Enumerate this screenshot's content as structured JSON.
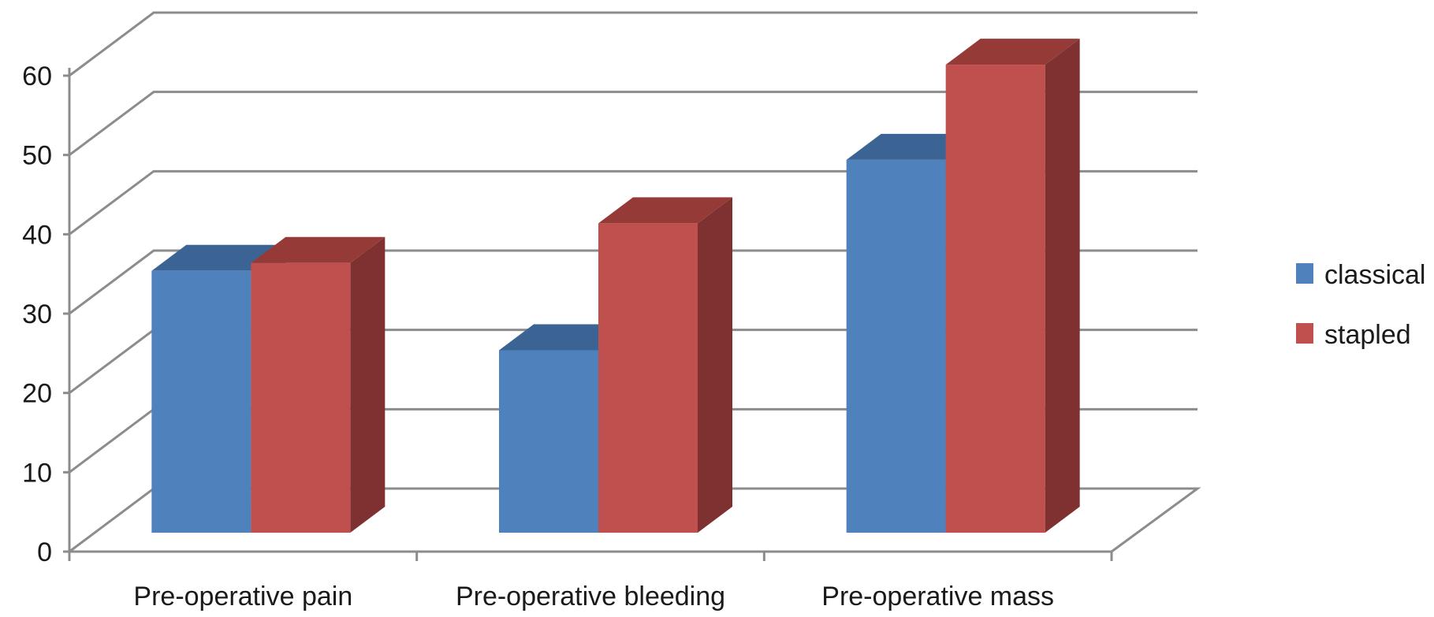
{
  "chart_data": {
    "type": "bar",
    "categories": [
      "Pre-operative pain",
      "Pre-operative bleeding",
      "Pre-operative mass"
    ],
    "series": [
      {
        "name": "classical",
        "values": [
          33,
          23,
          47
        ],
        "color": "#4F81BD",
        "top_color": "#3B6494",
        "side_color": "#2F5077"
      },
      {
        "name": "stapled",
        "values": [
          34,
          39,
          59
        ],
        "color": "#C0504D",
        "top_color": "#953A37",
        "side_color": "#7E3130"
      }
    ],
    "yticks": [
      0,
      10,
      20,
      30,
      40,
      50,
      60
    ],
    "ylim": [
      0,
      60
    ],
    "title": "",
    "xlabel": "",
    "ylabel": "",
    "grid": true,
    "legend_position": "right",
    "style": "3d-clustered-column"
  }
}
